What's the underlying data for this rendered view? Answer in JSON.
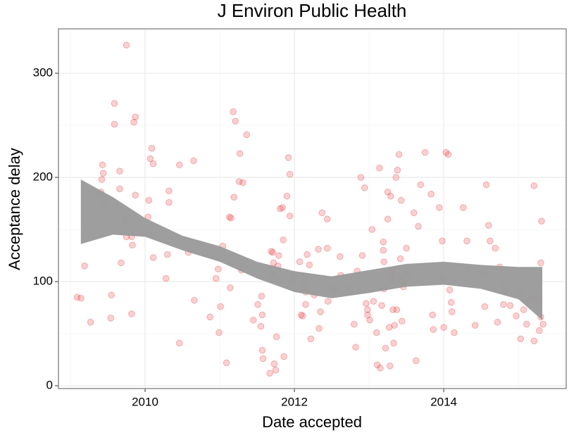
{
  "chart_data": {
    "type": "scatter",
    "title": "J Environ Public Health",
    "x_label": "Date accepted",
    "y_label": "Acceptance delay",
    "xlim": [
      2008.84,
      2015.64
    ],
    "ylim": [
      -2.7,
      342.6
    ],
    "xticks": [
      2010,
      2012,
      2014
    ],
    "yticks": [
      0,
      100,
      200,
      300
    ],
    "x_minor_grid": [
      2009,
      2011,
      2013,
      2015
    ],
    "y_minor_grid": [
      50,
      150,
      250
    ],
    "grid": true,
    "color": "#e41a1c",
    "point_opacity": 0.2,
    "x": [
      2009.09,
      2009.14,
      2009.19,
      2009.27,
      2009.41,
      2009.43,
      2009.44,
      2009.42,
      2009.44,
      2009.55,
      2009.54,
      2009.59,
      2009.59,
      2009.6,
      2009.66,
      2009.66,
      2009.68,
      2009.73,
      2009.75,
      2009.75,
      2009.82,
      2009.83,
      2009.82,
      2009.85,
      2009.87,
      2009.87,
      2010.04,
      2010.05,
      2010.07,
      2010.09,
      2010.11,
      2010.11,
      2010.46,
      2010.32,
      2010.32,
      2010.3,
      2010.28,
      2010.46,
      2010.58,
      2010.65,
      2010.66,
      2010.87,
      2010.95,
      2010.98,
      2010.99,
      2011.01,
      2011.04,
      2011.09,
      2011.13,
      2011.15,
      2011.14,
      2011.18,
      2011.21,
      2011.19,
      2011.26,
      2011.27,
      2011.31,
      2011.29,
      2011.36,
      2011.45,
      2011.51,
      2011.55,
      2011.57,
      2011.56,
      2011.57,
      2011.58,
      2011.67,
      2011.69,
      2011.71,
      2011.7,
      2011.72,
      2011.73,
      2011.75,
      2011.76,
      2011.78,
      2011.79,
      2011.81,
      2011.81,
      2011.84,
      2011.85,
      2011.86,
      2011.9,
      2011.92,
      2011.94,
      2011.94,
      2011.96,
      2011.99,
      2012.07,
      2012.09,
      2012.11,
      2012.13,
      2012.15,
      2012.15,
      2012.15,
      2012.17,
      2012.2,
      2012.22,
      2012.265,
      2012.32,
      2012.33,
      2012.35,
      2012.37,
      2012.44,
      2012.44,
      2012.45,
      2012.53,
      2012.61,
      2012.62,
      2012.75,
      2012.82,
      2012.8,
      2012.84,
      2012.89,
      2012.91,
      2012.94,
      2012.96,
      2012.98,
      2012.98,
      2013.01,
      2013.04,
      2013.06,
      2013.1,
      2013.11,
      2013.14,
      2013.15,
      2013.17,
      2013.19,
      2013.19,
      2013.2,
      2013.2,
      2013.22,
      2013.25,
      2013.25,
      2013.27,
      2013.28,
      2013.29,
      2013.3,
      2013.3,
      2013.32,
      2013.33,
      2013.34,
      2013.36,
      2013.37,
      2013.38,
      2013.4,
      2013.42,
      2013.43,
      2013.44,
      2013.445,
      2013.46,
      2013.5,
      2013.51,
      2013.6,
      2013.63,
      2013.66,
      2013.69,
      2013.75,
      2013.83,
      2013.85,
      2013.86,
      2013.94,
      2013.98,
      2013.99,
      2014,
      2014.03,
      2014.06,
      2014.08,
      2014.1,
      2014.11,
      2014.14,
      2014.26,
      2014.31,
      2014.42,
      2014.52,
      2014.55,
      2014.57,
      2014.6,
      2014.62,
      2014.69,
      2014.72,
      2014.75,
      2014.77,
      2014.8,
      2014.83,
      2014.89,
      2014.97,
      2015.01,
      2015.03,
      2015.07,
      2015.11,
      2015.17,
      2015.21,
      2015.21,
      2015.24,
      2015.28,
      2015.3,
      2015.3,
      2015.31,
      2015.33
    ],
    "values": [
      85,
      84,
      115,
      61,
      186,
      212,
      204,
      198,
      174,
      87,
      65,
      271,
      251,
      173,
      206,
      189,
      118,
      159,
      327,
      143,
      143,
      135,
      69,
      253,
      258,
      183,
      162,
      178,
      218,
      228,
      213,
      123,
      41,
      187,
      176,
      126,
      103,
      212,
      128,
      216,
      82,
      66,
      103,
      112,
      51,
      76,
      134,
      22,
      162,
      161,
      94,
      263,
      254,
      181,
      196,
      223,
      195,
      111,
      241,
      63,
      78,
      57,
      68,
      86,
      34,
      26,
      12,
      129,
      128,
      106,
      118,
      21,
      15,
      47,
      115,
      125,
      101,
      170,
      171,
      140,
      28,
      182,
      219,
      203,
      163,
      100,
      107,
      119,
      68,
      67,
      105,
      97,
      90,
      78,
      126,
      116,
      45,
      87,
      131,
      55,
      71,
      166,
      160,
      132,
      81,
      93,
      124,
      106,
      93,
      37,
      59,
      110,
      200,
      125,
      190,
      79,
      73,
      68,
      63,
      150,
      81,
      51,
      20,
      209,
      17,
      77,
      130,
      138,
      119,
      93,
      36,
      160,
      186,
      56,
      19,
      182,
      109,
      103,
      73,
      41,
      58,
      200,
      73,
      207,
      222,
      122,
      178,
      62,
      101,
      95,
      132,
      107,
      166,
      24,
      153,
      193,
      224,
      184,
      68,
      54,
      171,
      139,
      103,
      56,
      224,
      222,
      92,
      80,
      71,
      51,
      171,
      139,
      58,
      109,
      76,
      193,
      154,
      139,
      132,
      61,
      114,
      97,
      78,
      91,
      77,
      67,
      88,
      45,
      73,
      59,
      83,
      43,
      192,
      86,
      53,
      118,
      66,
      158,
      59
    ],
    "band": {
      "color": "#999999",
      "x": [
        2009.14,
        2009.57,
        2010,
        2010.5,
        2011,
        2011.5,
        2012,
        2012.5,
        2013,
        2013.5,
        2014,
        2014.5,
        2015,
        2015.32
      ],
      "upper": [
        198,
        181,
        161,
        144,
        134,
        119,
        110,
        105,
        111,
        117,
        119,
        116,
        114,
        114
      ],
      "lower": [
        136,
        145,
        143,
        130,
        119,
        103,
        90,
        84,
        89,
        95,
        97,
        93,
        83,
        63
      ]
    }
  }
}
